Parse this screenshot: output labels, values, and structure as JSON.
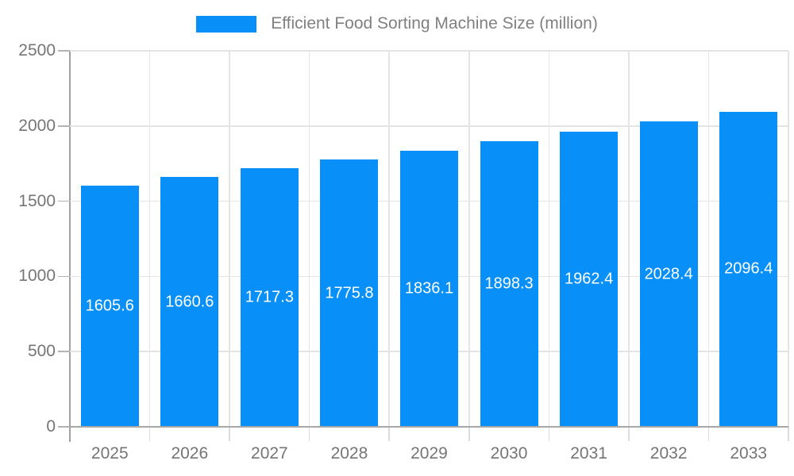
{
  "chart_data": {
    "type": "bar",
    "title": "Efficient Food Sorting Machine Size (million)",
    "legend": {
      "label": "Efficient Food Sorting Machine Size (million)",
      "position": "top"
    },
    "categories": [
      "2025",
      "2026",
      "2027",
      "2028",
      "2029",
      "2030",
      "2031",
      "2032",
      "2033"
    ],
    "values": [
      1605.6,
      1660.6,
      1717.3,
      1775.8,
      1836.1,
      1898.3,
      1962.4,
      2028.4,
      2096.4
    ],
    "xlabel": "",
    "ylabel": "",
    "ylim": [
      0,
      2500
    ],
    "yticks": [
      0,
      500,
      1000,
      1500,
      2000,
      2500
    ],
    "grid": true,
    "colors": {
      "bar": "#0990f8",
      "bar_value_label": "#ffffff",
      "axis_text": "#757575",
      "legend_text": "#808080",
      "gridline": "#e4e4e4",
      "axis_line": "#a8a8a8"
    }
  }
}
